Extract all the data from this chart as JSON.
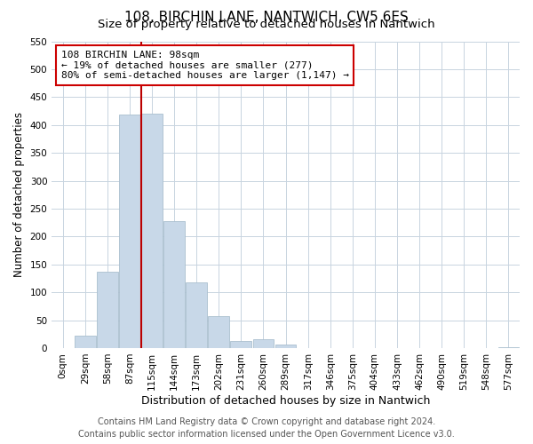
{
  "title": "108, BIRCHIN LANE, NANTWICH, CW5 6ES",
  "subtitle": "Size of property relative to detached houses in Nantwich",
  "xlabel": "Distribution of detached houses by size in Nantwich",
  "ylabel": "Number of detached properties",
  "bar_color": "#c8d8e8",
  "bar_edge_color": "#aabfcf",
  "background_color": "#ffffff",
  "grid_color": "#c8d4e0",
  "tick_labels": [
    "0sqm",
    "29sqm",
    "58sqm",
    "87sqm",
    "115sqm",
    "144sqm",
    "173sqm",
    "202sqm",
    "231sqm",
    "260sqm",
    "289sqm",
    "317sqm",
    "346sqm",
    "375sqm",
    "404sqm",
    "433sqm",
    "462sqm",
    "490sqm",
    "519sqm",
    "548sqm",
    "577sqm"
  ],
  "bar_values": [
    0,
    22,
    137,
    418,
    420,
    228,
    118,
    57,
    13,
    16,
    7,
    0,
    0,
    0,
    0,
    0,
    0,
    0,
    0,
    0,
    2
  ],
  "ylim": [
    0,
    550
  ],
  "yticks": [
    0,
    50,
    100,
    150,
    200,
    250,
    300,
    350,
    400,
    450,
    500,
    550
  ],
  "vline_index": 3,
  "vline_color": "#bb0000",
  "annotation_title": "108 BIRCHIN LANE: 98sqm",
  "annotation_line1": "← 19% of detached houses are smaller (277)",
  "annotation_line2": "80% of semi-detached houses are larger (1,147) →",
  "annotation_box_color": "#ffffff",
  "annotation_box_edge": "#cc0000",
  "footer_line1": "Contains HM Land Registry data © Crown copyright and database right 2024.",
  "footer_line2": "Contains public sector information licensed under the Open Government Licence v3.0.",
  "title_fontsize": 11,
  "subtitle_fontsize": 9.5,
  "xlabel_fontsize": 9,
  "ylabel_fontsize": 8.5,
  "tick_fontsize": 7.5,
  "annotation_fontsize": 8,
  "footer_fontsize": 7
}
